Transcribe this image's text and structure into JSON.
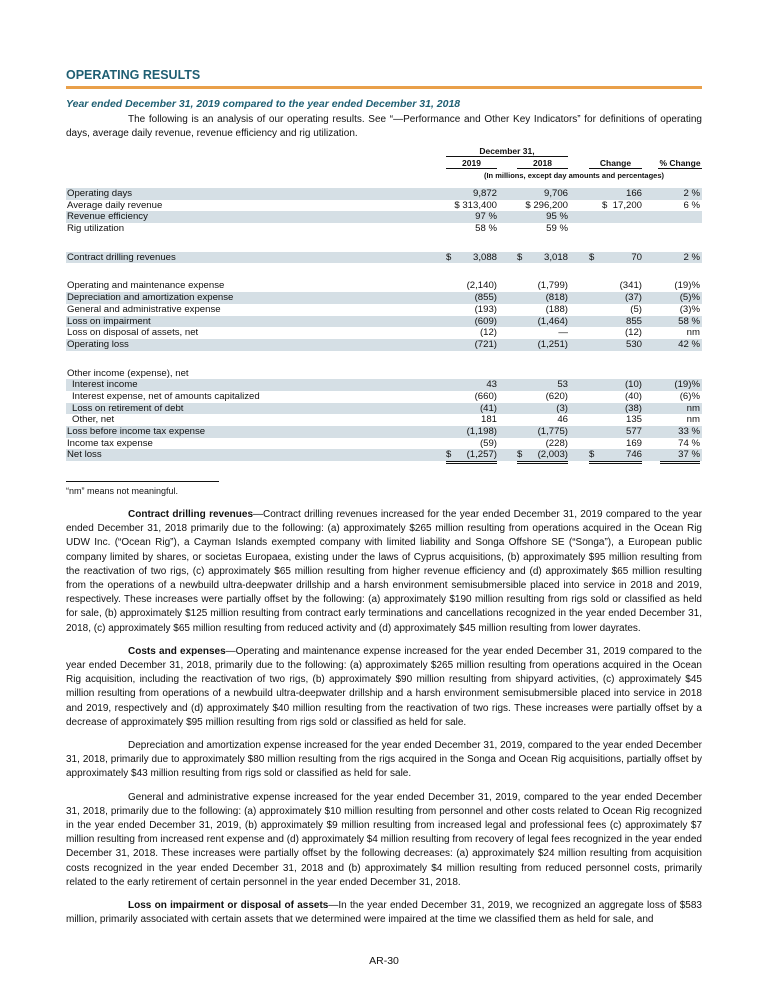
{
  "heading": "OPERATING RESULTS",
  "subheading": "Year ended December 31, 2019 compared to the year ended December 31, 2018",
  "intro": "The following is an analysis of our operating results.  See “—Performance and Other Key Indicators” for definitions of operating days, average daily revenue, revenue efficiency and rig utilization.",
  "table": {
    "group_header": "December 31,",
    "columns": [
      "2019",
      "2018",
      "Change",
      "% Change"
    ],
    "units_note": "(In millions, except day amounts and percentages)",
    "rows": [
      {
        "label": "Operating days",
        "values": [
          "9,872",
          "9,706",
          "166",
          "2 %"
        ],
        "shade": true
      },
      {
        "label": "Average daily revenue",
        "values": [
          "$ 313,400",
          "$ 296,200",
          "$  17,200",
          "6 %"
        ]
      },
      {
        "label": "Revenue efficiency",
        "values": [
          "97 %",
          "95 %",
          "",
          ""
        ],
        "shade": true
      },
      {
        "label": "Rig utilization",
        "values": [
          "58 %",
          "59 %",
          "",
          ""
        ]
      },
      {
        "gap": true
      },
      {
        "label": "Contract drilling revenues",
        "values": [
          "3,088",
          "3,018",
          "70",
          "2 %"
        ],
        "dollar": [
          true,
          true,
          true,
          false
        ],
        "shade": true
      },
      {
        "gap": true
      },
      {
        "label": "Operating and maintenance expense",
        "values": [
          "(2,140)",
          "(1,799)",
          "(341)",
          "(19)%"
        ]
      },
      {
        "label": "Depreciation and amortization expense",
        "values": [
          "(855)",
          "(818)",
          "(37)",
          "(5)%"
        ],
        "shade": true
      },
      {
        "label": "General and administrative expense",
        "values": [
          "(193)",
          "(188)",
          "(5)",
          "(3)%"
        ]
      },
      {
        "label": "Loss on impairment",
        "values": [
          "(609)",
          "(1,464)",
          "855",
          "58 %"
        ],
        "shade": true
      },
      {
        "label": "Loss on disposal of assets, net",
        "values": [
          "(12)",
          "—",
          "(12)",
          "nm"
        ],
        "line": "single"
      },
      {
        "label": "Operating loss",
        "values": [
          "(721)",
          "(1,251)",
          "530",
          "42 %"
        ],
        "shade": true
      },
      {
        "gap": true
      },
      {
        "label": "Other income (expense), net",
        "values": [
          "",
          "",
          "",
          ""
        ]
      },
      {
        "label": "Interest income",
        "values": [
          "43",
          "53",
          "(10)",
          "(19)%"
        ],
        "indent": true,
        "shade": true
      },
      {
        "label": "Interest expense, net of amounts capitalized",
        "values": [
          "(660)",
          "(620)",
          "(40)",
          "(6)%"
        ],
        "indent": true
      },
      {
        "label": "Loss on retirement of debt",
        "values": [
          "(41)",
          "(3)",
          "(38)",
          "nm"
        ],
        "indent": true,
        "shade": true
      },
      {
        "label": "Other, net",
        "values": [
          "181",
          "46",
          "135",
          "nm"
        ],
        "indent": true,
        "line": "single"
      },
      {
        "label": "Loss before income tax expense",
        "values": [
          "(1,198)",
          "(1,775)",
          "577",
          "33 %"
        ],
        "shade": true
      },
      {
        "label": "Income tax expense",
        "values": [
          "(59)",
          "(228)",
          "169",
          "74 %"
        ],
        "line": "single"
      },
      {
        "label": "Net loss",
        "values": [
          "(1,257)",
          "(2,003)",
          "746",
          "37 %"
        ],
        "dollar": [
          true,
          true,
          true,
          false
        ],
        "shade": true,
        "line": "double"
      }
    ]
  },
  "footnote": "“nm” means not meaningful.",
  "paragraphs": [
    {
      "lead": "Contract drilling revenues",
      "text": "—Contract drilling revenues increased for the year ended December 31, 2019 compared to the year ended December 31, 2018 primarily due to the following: (a) approximately $265 million resulting from operations acquired in the Ocean Rig UDW Inc. (“Ocean Rig”), a Cayman Islands exempted company with limited liability and Songa Offshore SE (“Songa”), a European public company limited by shares, or societas Europaea, existing under the laws of Cyprus acquisitions, (b) approximately $95 million resulting from the reactivation of two rigs, (c) approximately $65 million resulting from higher revenue efficiency and (d) approximately $65 million resulting from the operations of a newbuild ultra-deepwater drillship and a harsh environment semisubmersible placed into service in 2018 and 2019, respectively.  These increases were partially offset by the following:  (a) approximately $190 million resulting from rigs sold or classified as held for sale, (b) approximately $125 million resulting from contract early terminations and cancellations recognized in the year ended December 31, 2018, (c) approximately $65 million resulting from reduced activity and (d) approximately $45 million resulting from lower dayrates."
    },
    {
      "lead": "Costs and expenses",
      "text": "—Operating and maintenance expense increased for the year ended December 31, 2019 compared to the year ended December 31, 2018, primarily due to the following: (a) approximately $265 million resulting from operations acquired in the Ocean Rig acquisition, including the reactivation of two rigs, (b) approximately $90 million resulting from shipyard activities, (c) approximately $45 million resulting from operations of a newbuild ultra-deepwater drillship and a harsh environment semisubmersible placed into service in 2018 and 2019, respectively and (d) approximately $40 million resulting from the reactivation of two rigs.  These increases were partially offset by a decrease of approximately $95 million resulting from rigs sold or classified as held for sale."
    },
    {
      "lead": "",
      "text": "Depreciation and amortization expense increased for the year ended December 31, 2019, compared to the year ended December 31, 2018, primarily due to approximately $80 million resulting from the rigs acquired in the Songa and Ocean Rig acquisitions, partially offset by approximately $43 million resulting from rigs sold or classified as held for sale."
    },
    {
      "lead": "",
      "text": "General and administrative expense increased for the year ended December 31, 2019, compared to the year ended December 31, 2018, primarily due to the following: (a) approximately $10 million resulting from personnel and other costs related to Ocean Rig recognized in the year ended December 31, 2019, (b) approximately $9 million resulting from increased legal and professional fees (c) approximately $7 million resulting from increased rent expense and (d) approximately $4 million resulting from recovery of legal fees recognized in the year ended December 31, 2018.  These increases were partially offset by the following decreases: (a) approximately $24 million resulting from acquisition costs recognized in the year ended December 31, 2018 and (b) approximately $4 million resulting from reduced personnel costs, primarily related to the early retirement of certain personnel in the year ended December 31, 2018."
    },
    {
      "lead": "Loss on impairment or disposal of assets",
      "text": "—In the year ended December 31, 2019, we recognized an aggregate loss of $583 million, primarily associated with certain assets that we determined were impaired at the time we classified them as held for sale, and"
    }
  ],
  "page_number": "AR-30",
  "colors": {
    "heading": "#1f5f73",
    "rule": "#e9a04a",
    "row_shade": "#d5dfe5"
  }
}
